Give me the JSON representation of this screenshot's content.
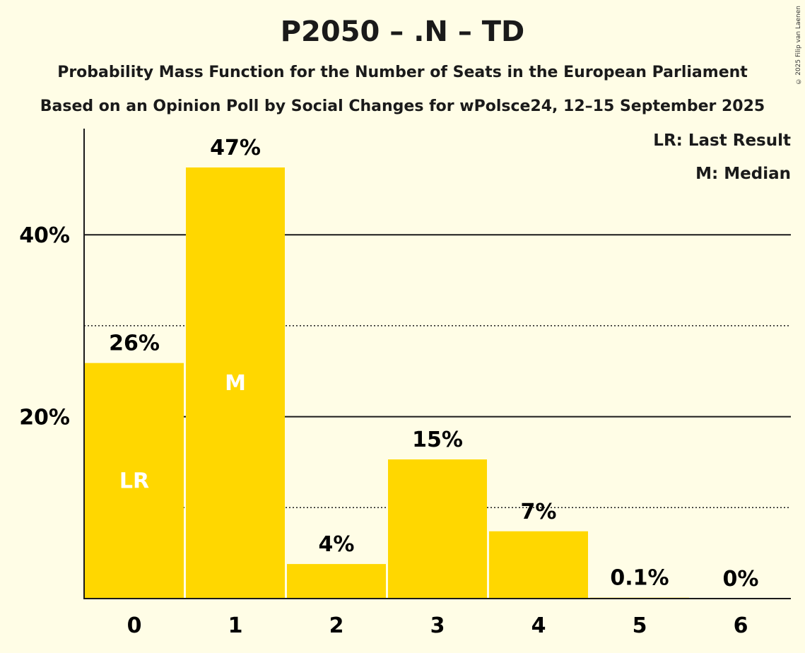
{
  "title": "P2050 – .N – TD",
  "subtitle_1": "Probability Mass Function for the Number of Seats in the European Parliament",
  "subtitle_2": "Based on an Opinion Poll by Social Changes for wPolsce24, 12–15 September 2025",
  "copyright": "© 2025 Filip van Laenen",
  "legend": {
    "last_result": "LR: Last Result",
    "median": "M: Median"
  },
  "colors": {
    "background": "#fffde6",
    "bar": "#ffd700",
    "axis": "#1a1a1a"
  },
  "chart_data": {
    "type": "bar",
    "categories": [
      "0",
      "1",
      "2",
      "3",
      "4",
      "5",
      "6"
    ],
    "values": [
      25.9,
      47.4,
      3.8,
      15.3,
      7.4,
      0.1,
      0
    ],
    "value_labels": [
      "26%",
      "47%",
      "4%",
      "15%",
      "7%",
      "0.1%",
      "0%"
    ],
    "inside_labels": [
      "LR",
      "M",
      "",
      "",
      "",
      "",
      ""
    ],
    "yticks": [
      {
        "value": 20,
        "label": "20%"
      },
      {
        "value": 40,
        "label": "40%"
      }
    ],
    "dotted_gridlines": [
      10,
      30
    ],
    "solid_gridlines": [
      20,
      40
    ],
    "ylim": [
      0,
      50
    ],
    "last_result_seat": 0,
    "median_seat": 1
  }
}
